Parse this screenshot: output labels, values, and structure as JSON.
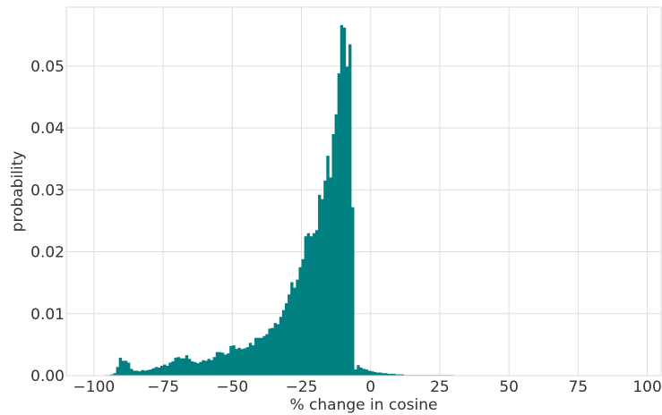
{
  "chart_data": {
    "type": "bar",
    "xlabel": "% change in cosine",
    "ylabel": "probability",
    "xlim": [
      -110,
      105
    ],
    "ylim": [
      0,
      0.0595
    ],
    "xticks": [
      -100,
      -75,
      -50,
      -25,
      0,
      25,
      50,
      75,
      100
    ],
    "xtick_labels": [
      "−100",
      "−75",
      "−50",
      "−25",
      "0",
      "25",
      "50",
      "75",
      "100"
    ],
    "yticks": [
      0,
      0.01,
      0.02,
      0.03,
      0.04,
      0.05
    ],
    "ytick_labels": [
      "0.00",
      "0.01",
      "0.02",
      "0.03",
      "0.04",
      "0.05"
    ],
    "grid": true,
    "bar_color": "#008080",
    "bin_width": 1,
    "bin_starts": [
      -96,
      -95,
      -94,
      -93,
      -92,
      -91,
      -90,
      -89,
      -88,
      -87,
      -86,
      -85,
      -84,
      -83,
      -82,
      -81,
      -80,
      -79,
      -78,
      -77,
      -76,
      -75,
      -74,
      -73,
      -72,
      -71,
      -70,
      -69,
      -68,
      -67,
      -66,
      -65,
      -64,
      -63,
      -62,
      -61,
      -60,
      -59,
      -58,
      -57,
      -56,
      -55,
      -54,
      -53,
      -52,
      -51,
      -50,
      -49,
      -48,
      -47,
      -46,
      -45,
      -44,
      -43,
      -42,
      -41,
      -40,
      -39,
      -38,
      -37,
      -36,
      -35,
      -34,
      -33,
      -32,
      -31,
      -30,
      -29,
      -28,
      -27,
      -26,
      -25,
      -24,
      -23,
      -22,
      -21,
      -20,
      -19,
      -18,
      -17,
      -16,
      -15,
      -14,
      -13,
      -12,
      -11,
      -10,
      -9,
      -8,
      -7,
      -6,
      -5,
      -4,
      -3,
      -2,
      -1,
      0,
      1,
      2,
      3,
      4,
      5,
      6,
      7,
      8,
      9,
      10,
      11,
      12,
      13,
      14,
      15,
      16,
      17,
      18,
      19,
      20,
      21,
      22,
      23,
      24,
      25,
      26,
      27,
      28,
      29
    ],
    "values": [
      0.0001,
      0.0001,
      0.0002,
      0.0004,
      0.0014,
      0.0029,
      0.0024,
      0.0024,
      0.0021,
      0.0011,
      0.0008,
      0.0008,
      0.0007,
      0.0009,
      0.0008,
      0.0009,
      0.001,
      0.0012,
      0.0014,
      0.0013,
      0.0016,
      0.0018,
      0.0016,
      0.0021,
      0.0023,
      0.0029,
      0.003,
      0.0028,
      0.0028,
      0.0033,
      0.0027,
      0.0023,
      0.0022,
      0.002,
      0.0022,
      0.0025,
      0.0024,
      0.0027,
      0.0025,
      0.003,
      0.0038,
      0.0038,
      0.0037,
      0.0034,
      0.0036,
      0.0048,
      0.0049,
      0.0043,
      0.0045,
      0.0043,
      0.0044,
      0.0046,
      0.0053,
      0.0049,
      0.0061,
      0.0061,
      0.0061,
      0.0064,
      0.0067,
      0.0076,
      0.0077,
      0.0085,
      0.0083,
      0.0095,
      0.0106,
      0.0117,
      0.0131,
      0.0151,
      0.0142,
      0.0155,
      0.0175,
      0.0188,
      0.0225,
      0.023,
      0.0225,
      0.023,
      0.0235,
      0.0292,
      0.0285,
      0.0315,
      0.0355,
      0.032,
      0.039,
      0.0422,
      0.0488,
      0.0566,
      0.0562,
      0.0499,
      0.0535,
      0.0272,
      0.001,
      0.0017,
      0.0013,
      0.0011,
      0.001,
      0.0008,
      0.0007,
      0.0006,
      0.0005,
      0.0005,
      0.0004,
      0.0004,
      0.0003,
      0.0003,
      0.0003,
      0.0002,
      0.0002,
      0.0002,
      0.0001,
      0.0001,
      0.0001,
      0.0001,
      0.0001,
      0.0001,
      0.0001,
      0.0001,
      0.0001,
      0.0001,
      0.0001,
      0.0001,
      0.0001,
      0.0001,
      0.0001,
      0.0001,
      0.0001,
      0.0001
    ]
  }
}
